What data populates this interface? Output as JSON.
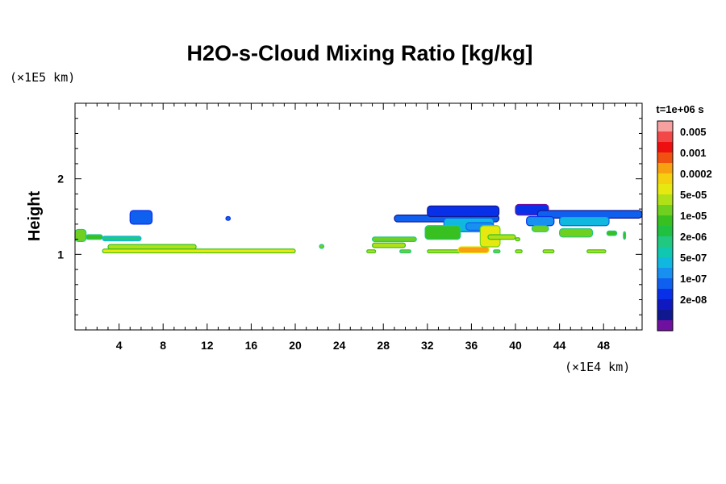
{
  "chart_data": {
    "type": "heatmap",
    "title": "H2O-s-Cloud Mixing Ratio [kg/kg]",
    "time_label": "t=1e+06 s",
    "xlabel": "",
    "ylabel": "Height",
    "x_unit": "(×1E4 km)",
    "y_unit": "(×1E5 km)",
    "xlim": [
      0,
      51.5
    ],
    "ylim": [
      0,
      3
    ],
    "x_ticks": [
      4,
      8,
      12,
      16,
      20,
      24,
      28,
      32,
      36,
      40,
      44,
      48
    ],
    "y_ticks": [
      1,
      2
    ],
    "grid": false,
    "colorbar": {
      "labels": [
        "0.005",
        "0.001",
        "0.0002",
        "5e-05",
        "1e-05",
        "2e-06",
        "5e-07",
        "1e-07",
        "2e-08"
      ],
      "colors": [
        "#f7a0a0",
        "#f24848",
        "#ee1010",
        "#f05010",
        "#f7a010",
        "#f4d010",
        "#e6e810",
        "#b0e018",
        "#70d020",
        "#38c020",
        "#20c040",
        "#20c880",
        "#10c8b0",
        "#10b8e0",
        "#1890f0",
        "#1060f0",
        "#0830e8",
        "#1018c0",
        "#101890",
        "#7010a0"
      ]
    },
    "regions": [
      {
        "x": [
          5.0,
          7.0
        ],
        "y": [
          1.4,
          1.58
        ],
        "color": "#1060f0",
        "edge": "#0830e8"
      },
      {
        "x": [
          13.7,
          14.1
        ],
        "y": [
          1.45,
          1.5
        ],
        "color": "#1060f0",
        "edge": "#0830e8"
      },
      {
        "x": [
          0.0,
          1.0
        ],
        "y": [
          1.17,
          1.33
        ],
        "color": "#70d020",
        "edge": "#20c880"
      },
      {
        "x": [
          1.0,
          2.5
        ],
        "y": [
          1.2,
          1.26
        ],
        "color": "#38c020",
        "edge": "#20c880"
      },
      {
        "x": [
          2.5,
          6.0
        ],
        "y": [
          1.18,
          1.24
        ],
        "color": "#20c880",
        "edge": "#10b8e0"
      },
      {
        "x": [
          3.0,
          11.0
        ],
        "y": [
          1.07,
          1.13
        ],
        "color": "#b0e018",
        "edge": "#38c020"
      },
      {
        "x": [
          2.5,
          20.0
        ],
        "y": [
          1.02,
          1.07
        ],
        "color": "#e6e810",
        "edge": "#38c020"
      },
      {
        "x": [
          22.2,
          22.6
        ],
        "y": [
          1.08,
          1.13
        ],
        "color": "#70d020",
        "edge": "#20c880"
      },
      {
        "x": [
          27.0,
          31.0
        ],
        "y": [
          1.17,
          1.23
        ],
        "color": "#70d020",
        "edge": "#20c880"
      },
      {
        "x": [
          27.0,
          30.0
        ],
        "y": [
          1.09,
          1.15
        ],
        "color": "#b0e018",
        "edge": "#38c020"
      },
      {
        "x": [
          29.0,
          38.5
        ],
        "y": [
          1.43,
          1.52
        ],
        "color": "#1060f0",
        "edge": "#101890"
      },
      {
        "x": [
          32.0,
          38.5
        ],
        "y": [
          1.5,
          1.64
        ],
        "color": "#0830e8",
        "edge": "#101890"
      },
      {
        "x": [
          33.5,
          38.0
        ],
        "y": [
          1.3,
          1.48
        ],
        "color": "#10b8e0",
        "edge": "#1060f0"
      },
      {
        "x": [
          31.8,
          35.0
        ],
        "y": [
          1.2,
          1.38
        ],
        "color": "#38c020",
        "edge": "#20c880"
      },
      {
        "x": [
          35.5,
          38.0
        ],
        "y": [
          1.32,
          1.42
        ],
        "color": "#1890f0",
        "edge": "#1060f0"
      },
      {
        "x": [
          32.0,
          35.0
        ],
        "y": [
          1.02,
          1.06
        ],
        "color": "#b0e018",
        "edge": "#38c020"
      },
      {
        "x": [
          34.8,
          37.6
        ],
        "y": [
          1.02,
          1.1
        ],
        "color": "#f7a010",
        "edge": "#e6e810"
      },
      {
        "x": [
          36.8,
          38.6
        ],
        "y": [
          1.1,
          1.38
        ],
        "color": "#e6e810",
        "edge": "#70d020"
      },
      {
        "x": [
          40.0,
          43.0
        ],
        "y": [
          1.52,
          1.66
        ],
        "color": "#0830e8",
        "edge": "#7010a0"
      },
      {
        "x": [
          42.0,
          51.5
        ],
        "y": [
          1.48,
          1.58
        ],
        "color": "#1060f0",
        "edge": "#101890"
      },
      {
        "x": [
          41.0,
          43.5
        ],
        "y": [
          1.38,
          1.5
        ],
        "color": "#1890f0",
        "edge": "#0830e8"
      },
      {
        "x": [
          44.0,
          48.5
        ],
        "y": [
          1.38,
          1.5
        ],
        "color": "#10b8e0",
        "edge": "#1060f0"
      },
      {
        "x": [
          41.5,
          43.0
        ],
        "y": [
          1.3,
          1.38
        ],
        "color": "#70d020",
        "edge": "#20c880"
      },
      {
        "x": [
          44.0,
          47.0
        ],
        "y": [
          1.23,
          1.34
        ],
        "color": "#70d020",
        "edge": "#20c880"
      },
      {
        "x": [
          48.3,
          49.2
        ],
        "y": [
          1.25,
          1.31
        ],
        "color": "#38c020",
        "edge": "#20c880"
      },
      {
        "x": [
          49.8,
          50.0
        ],
        "y": [
          1.2,
          1.3
        ],
        "color": "#38c020",
        "edge": "#20c880"
      },
      {
        "x": [
          37.5,
          40.0
        ],
        "y": [
          1.2,
          1.26
        ],
        "color": "#b0e018",
        "edge": "#38c020"
      },
      {
        "x": [
          26.5,
          27.3
        ],
        "y": [
          1.02,
          1.06
        ],
        "color": "#b0e018",
        "edge": "#38c020"
      },
      {
        "x": [
          29.5,
          30.5
        ],
        "y": [
          1.02,
          1.06
        ],
        "color": "#70d020",
        "edge": "#20c880"
      },
      {
        "x": [
          38.0,
          38.6
        ],
        "y": [
          1.02,
          1.06
        ],
        "color": "#70d020",
        "edge": "#20c880"
      },
      {
        "x": [
          40.0,
          40.6
        ],
        "y": [
          1.02,
          1.06
        ],
        "color": "#b0e018",
        "edge": "#38c020"
      },
      {
        "x": [
          42.5,
          43.5
        ],
        "y": [
          1.02,
          1.06
        ],
        "color": "#b0e018",
        "edge": "#38c020"
      },
      {
        "x": [
          46.5,
          48.2
        ],
        "y": [
          1.02,
          1.06
        ],
        "color": "#b0e018",
        "edge": "#38c020"
      },
      {
        "x": [
          40.0,
          40.4
        ],
        "y": [
          1.18,
          1.22
        ],
        "color": "#b0e018",
        "edge": "#38c020"
      }
    ]
  }
}
